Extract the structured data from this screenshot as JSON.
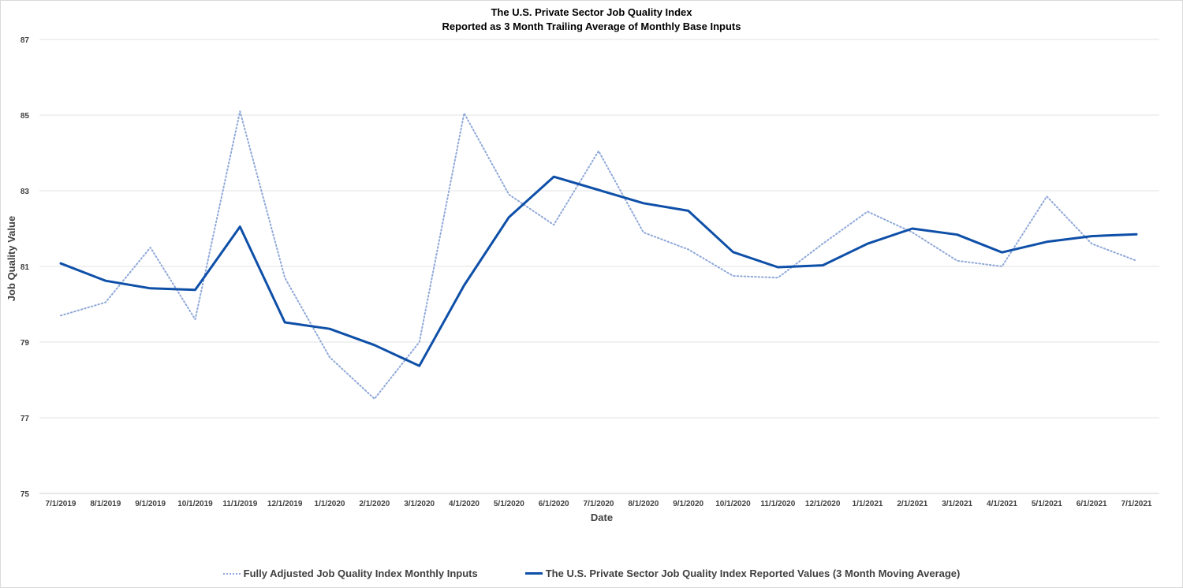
{
  "chart_data": {
    "type": "line",
    "title": "The U.S. Private Sector Job Quality Index",
    "subtitle": "Reported as 3 Month Trailing Average of Monthly Base Inputs",
    "xlabel": "Date",
    "ylabel": "Job Quality Value",
    "ylim": [
      75,
      87
    ],
    "yticks": [
      75,
      77,
      79,
      81,
      83,
      85,
      87
    ],
    "grid": true,
    "legend_position": "bottom",
    "categories": [
      "7/1/2019",
      "8/1/2019",
      "9/1/2019",
      "10/1/2019",
      "11/1/2019",
      "12/1/2019",
      "1/1/2020",
      "2/1/2020",
      "3/1/2020",
      "4/1/2020",
      "5/1/2020",
      "6/1/2020",
      "7/1/2020",
      "8/1/2020",
      "9/1/2020",
      "10/1/2020",
      "11/1/2020",
      "12/1/2020",
      "1/1/2021",
      "2/1/2021",
      "3/1/2021",
      "4/1/2021",
      "5/1/2021",
      "6/1/2021",
      "7/1/2021"
    ],
    "series": [
      {
        "name": "Fully Adjusted Job Quality Index Monthly Inputs",
        "style": "dotted",
        "color": "#8fa8d8",
        "values": [
          79.7,
          80.05,
          81.5,
          79.6,
          85.1,
          80.7,
          78.6,
          77.5,
          79.0,
          85.05,
          82.9,
          82.1,
          84.05,
          81.9,
          81.45,
          80.75,
          80.7,
          81.6,
          82.45,
          81.9,
          81.15,
          81.0,
          82.85,
          81.6,
          81.15
        ]
      },
      {
        "name": "The U.S. Private Sector Job Quality Index Reported Values (3  Month Moving Average)",
        "style": "solid",
        "color": "#0e4fa8",
        "values": [
          81.08,
          80.62,
          80.42,
          80.38,
          82.05,
          79.52,
          79.35,
          78.92,
          78.37,
          80.5,
          82.3,
          83.37,
          83.02,
          82.67,
          82.47,
          81.38,
          80.98,
          81.03,
          81.6,
          82.0,
          81.84,
          81.37,
          81.65,
          81.8,
          81.85
        ]
      }
    ]
  }
}
